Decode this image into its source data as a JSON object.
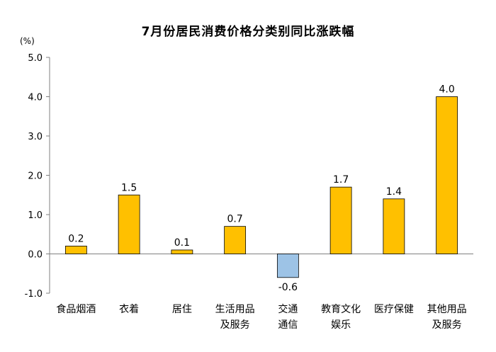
{
  "chart_data": {
    "type": "bar",
    "title": "7月份居民消费价格分类别同比涨跌幅",
    "ylabel": "(%)",
    "xlabel": "",
    "ylim": [
      -1.0,
      5.0
    ],
    "yticks": [
      "5.0",
      "4.0",
      "3.0",
      "2.0",
      "1.0",
      "0.0",
      "-1.0"
    ],
    "ytick_values": [
      5,
      4,
      3,
      2,
      1,
      0,
      -1
    ],
    "grid": false,
    "categories": [
      [
        "食品烟酒"
      ],
      [
        "衣着"
      ],
      [
        "居住"
      ],
      [
        "生活用品",
        "及服务"
      ],
      [
        "交通",
        "通信"
      ],
      [
        "教育文化",
        "娱乐"
      ],
      [
        "医疗保健"
      ],
      [
        "其他用品",
        "及服务"
      ]
    ],
    "values": [
      0.2,
      1.5,
      0.1,
      0.7,
      -0.6,
      1.7,
      1.4,
      4.0
    ],
    "value_labels": [
      "0.2",
      "1.5",
      "0.1",
      "0.7",
      "-0.6",
      "1.7",
      "1.4",
      "4.0"
    ],
    "colors": {
      "positive": "#FFC000",
      "negative": "#9DC3E6",
      "border": "#000000",
      "axis": "#808080"
    }
  }
}
